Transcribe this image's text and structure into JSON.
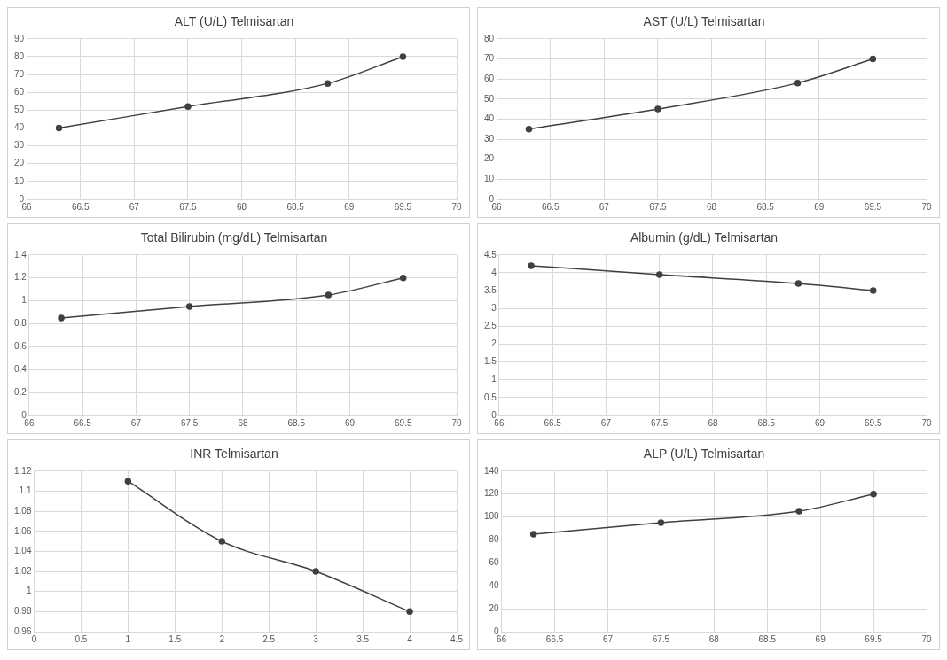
{
  "chart_data": [
    {
      "type": "line",
      "title": "ALT (U/L) Telmisartan",
      "x": [
        66.3,
        67.5,
        68.8,
        69.5
      ],
      "values": [
        40,
        52,
        65,
        80
      ],
      "color": "#404040",
      "marker": "circle",
      "grid": true,
      "xlim": [
        66,
        70
      ],
      "xticks": [
        66,
        66.5,
        67,
        67.5,
        68,
        68.5,
        69,
        69.5,
        70
      ],
      "ylim": [
        0,
        90
      ],
      "yticks": [
        0,
        10,
        20,
        30,
        40,
        50,
        60,
        70,
        80,
        90
      ]
    },
    {
      "type": "line",
      "title": "AST (U/L) Telmisartan",
      "x": [
        66.3,
        67.5,
        68.8,
        69.5
      ],
      "values": [
        35,
        45,
        58,
        70
      ],
      "color": "#404040",
      "marker": "circle",
      "grid": true,
      "xlim": [
        66,
        70
      ],
      "xticks": [
        66,
        66.5,
        67,
        67.5,
        68,
        68.5,
        69,
        69.5,
        70
      ],
      "ylim": [
        0,
        80
      ],
      "yticks": [
        0,
        10,
        20,
        30,
        40,
        50,
        60,
        70,
        80
      ]
    },
    {
      "type": "line",
      "title": "Total Bilirubin (mg/dL) Telmisartan",
      "x": [
        66.3,
        67.5,
        68.8,
        69.5
      ],
      "values": [
        0.85,
        0.95,
        1.05,
        1.2
      ],
      "color": "#404040",
      "marker": "circle",
      "grid": true,
      "xlim": [
        66,
        70
      ],
      "xticks": [
        66,
        66.5,
        67,
        67.5,
        68,
        68.5,
        69,
        69.5,
        70
      ],
      "ylim": [
        0,
        1.4
      ],
      "yticks": [
        0,
        0.2,
        0.4,
        0.6,
        0.8,
        1,
        1.2,
        1.4
      ]
    },
    {
      "type": "line",
      "title": "Albumin (g/dL) Telmisartan",
      "x": [
        66.3,
        67.5,
        68.8,
        69.5
      ],
      "values": [
        4.2,
        3.95,
        3.7,
        3.5
      ],
      "color": "#404040",
      "marker": "circle",
      "grid": true,
      "xlim": [
        66,
        70
      ],
      "xticks": [
        66,
        66.5,
        67,
        67.5,
        68,
        68.5,
        69,
        69.5,
        70
      ],
      "ylim": [
        0,
        4.5
      ],
      "yticks": [
        0,
        0.5,
        1,
        1.5,
        2,
        2.5,
        3,
        3.5,
        4,
        4.5
      ]
    },
    {
      "type": "line",
      "title": "INR Telmisartan",
      "x": [
        1,
        2,
        3,
        4
      ],
      "values": [
        1.11,
        1.05,
        1.02,
        0.98
      ],
      "color": "#404040",
      "marker": "circle",
      "grid": true,
      "xlim": [
        0,
        4.5
      ],
      "xticks": [
        0,
        0.5,
        1,
        1.5,
        2,
        2.5,
        3,
        3.5,
        4,
        4.5
      ],
      "ylim": [
        0.96,
        1.12
      ],
      "yticks": [
        0.96,
        0.98,
        1,
        1.02,
        1.04,
        1.06,
        1.08,
        1.1,
        1.12
      ]
    },
    {
      "type": "line",
      "title": "ALP (U/L) Telmisartan",
      "x": [
        66.3,
        67.5,
        68.8,
        69.5
      ],
      "values": [
        85,
        95,
        105,
        120
      ],
      "color": "#404040",
      "marker": "circle",
      "grid": true,
      "xlim": [
        66,
        70
      ],
      "xticks": [
        66,
        66.5,
        67,
        67.5,
        68,
        68.5,
        69,
        69.5,
        70
      ],
      "ylim": [
        0,
        140
      ],
      "yticks": [
        0,
        20,
        40,
        60,
        80,
        100,
        120,
        140
      ]
    }
  ]
}
